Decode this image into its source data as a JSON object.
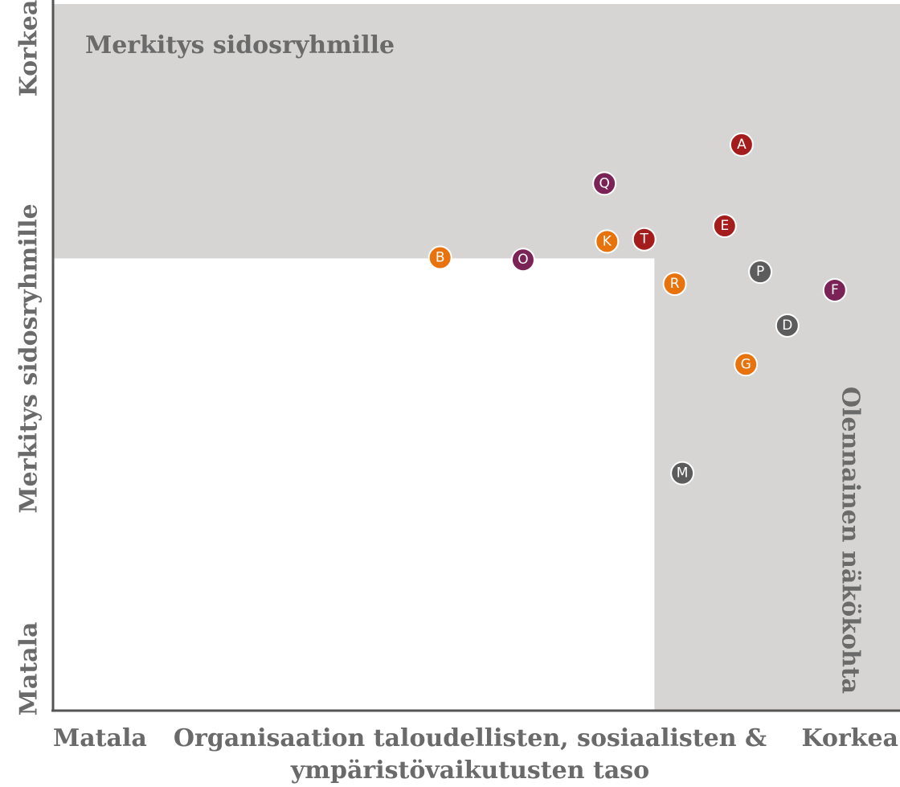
{
  "chart_data": {
    "type": "scatter",
    "region_label": "Merkitys sidosryhmille",
    "side_label": "Olennainen näkökohta",
    "y_label": "Merkitys sidosryhmille",
    "y_high": "Korkea",
    "y_low": "Matala",
    "x_label": [
      "Organisaation taloudellisten, sosiaalisten &",
      "ympäristövaikutusten taso"
    ],
    "x_low": "Matala",
    "x_high": "Korkea",
    "xlim": [
      0,
      100
    ],
    "ylim": [
      0,
      100
    ],
    "threshold": {
      "x": 71,
      "y": 64
    },
    "region_color": "#d6d5d4",
    "points": [
      {
        "label": "A",
        "x": 81.3,
        "y": 80.1,
        "color": "#a51c1c"
      },
      {
        "label": "Q",
        "x": 65.1,
        "y": 74.6,
        "color": "#7b2356"
      },
      {
        "label": "E",
        "x": 79.3,
        "y": 68.6,
        "color": "#a51c1c"
      },
      {
        "label": "K",
        "x": 65.4,
        "y": 66.4,
        "color": "#e8720c"
      },
      {
        "label": "T",
        "x": 69.8,
        "y": 66.7,
        "color": "#a51c1c"
      },
      {
        "label": "B",
        "x": 45.7,
        "y": 64.1,
        "color": "#e8720c"
      },
      {
        "label": "O",
        "x": 55.5,
        "y": 63.8,
        "color": "#7b2356"
      },
      {
        "label": "P",
        "x": 83.5,
        "y": 62.1,
        "color": "#5c5c5c"
      },
      {
        "label": "R",
        "x": 73.4,
        "y": 60.4,
        "color": "#e8720c"
      },
      {
        "label": "F",
        "x": 92.3,
        "y": 59.5,
        "color": "#7b2356"
      },
      {
        "label": "D",
        "x": 86.7,
        "y": 54.5,
        "color": "#5c5c5c"
      },
      {
        "label": "G",
        "x": 81.8,
        "y": 49.0,
        "color": "#e8720c"
      },
      {
        "label": "M",
        "x": 74.3,
        "y": 33.6,
        "color": "#5c5c5c"
      }
    ]
  }
}
